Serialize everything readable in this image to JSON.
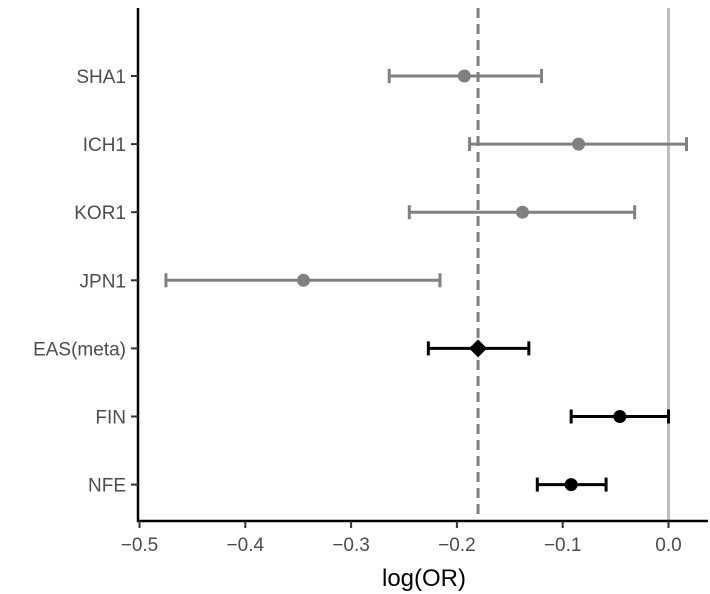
{
  "chart_data": {
    "type": "scatter",
    "subtype": "forest-plot",
    "title": "",
    "xlabel": "log(OR)",
    "ylabel": "",
    "xlim": [
      -0.5,
      0.04
    ],
    "x_ticks": [
      -0.5,
      -0.4,
      -0.3,
      -0.2,
      -0.1,
      0.0
    ],
    "x_tick_labels": [
      "−0.5",
      "−0.4",
      "−0.3",
      "−0.2",
      "−0.1",
      "0.0"
    ],
    "grid": false,
    "legend": "none",
    "categories": [
      "SHA1",
      "ICH1",
      "KOR1",
      "JPN1",
      "EAS(meta)",
      "FIN",
      "NFE"
    ],
    "estimates": [
      -0.193,
      -0.085,
      -0.138,
      -0.345,
      -0.18,
      -0.046,
      -0.092
    ],
    "lower": [
      -0.264,
      -0.188,
      -0.245,
      -0.475,
      -0.227,
      -0.092,
      -0.124
    ],
    "upper": [
      -0.12,
      0.017,
      -0.032,
      -0.216,
      -0.132,
      0.0,
      -0.059
    ],
    "shapes": [
      "circle",
      "circle",
      "circle",
      "circle",
      "diamond",
      "circle",
      "circle"
    ],
    "point_colors": [
      "#808080",
      "#808080",
      "#808080",
      "#808080",
      "#000000",
      "#000000",
      "#000000"
    ],
    "reference_lines": [
      {
        "x": -0.18,
        "style": "dashed",
        "color": "#808080"
      },
      {
        "x": 0.0,
        "style": "solid",
        "color": "#bdbdbd"
      }
    ]
  }
}
